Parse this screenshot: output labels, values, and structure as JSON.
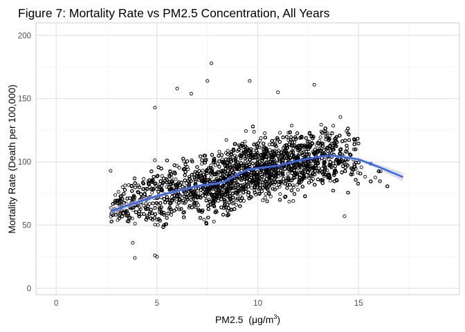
{
  "chart_data": {
    "type": "scatter",
    "title": "Figure 7: Mortality Rate vs PM2.5 Concentration, All Years",
    "xlabel_main": "PM2.5",
    "xlabel_unit": "(μg/m",
    "xlabel_sup": "3",
    "xlabel_close": ")",
    "ylabel": "Mortality Rate (Death per 100,000)",
    "xlim": [
      -1,
      20
    ],
    "ylim": [
      -5,
      210
    ],
    "x_ticks": [
      0,
      5,
      10,
      15
    ],
    "x_tick_labels": [
      "0",
      "5",
      "10",
      "15"
    ],
    "y_ticks": [
      0,
      50,
      100,
      150,
      200
    ],
    "y_tick_labels": [
      "0",
      "50",
      "100",
      "150",
      "200"
    ],
    "grid": true,
    "point_color": "#000000",
    "smooth_color": "#3366ff",
    "band_color": "#cccccc",
    "cloud": {
      "x_range": [
        2.7,
        17.3
      ],
      "y_spread": [
        20,
        120
      ]
    },
    "smooth": {
      "x": [
        2.7,
        4,
        5,
        6,
        7,
        8,
        8.3,
        9,
        9.5,
        10,
        11,
        12,
        13,
        13.5,
        14,
        15,
        16,
        17.2
      ],
      "y": [
        61,
        68,
        73,
        77,
        81,
        83,
        84,
        90,
        94,
        95,
        97,
        101,
        104,
        105,
        104.5,
        102,
        96,
        88
      ],
      "band": [
        3,
        2,
        1.5,
        1.2,
        1,
        1,
        1,
        1,
        0.8,
        0.8,
        0.8,
        0.8,
        0.8,
        0.8,
        0.9,
        1.2,
        2,
        3.5
      ]
    },
    "outliers": [
      {
        "x": 7.7,
        "y": 178
      },
      {
        "x": 7.5,
        "y": 164
      },
      {
        "x": 9.6,
        "y": 164
      },
      {
        "x": 6.0,
        "y": 158
      },
      {
        "x": 12.8,
        "y": 161
      },
      {
        "x": 11.0,
        "y": 155
      },
      {
        "x": 4.9,
        "y": 143
      },
      {
        "x": 6.7,
        "y": 154
      },
      {
        "x": 3.9,
        "y": 24
      },
      {
        "x": 4.9,
        "y": 26
      },
      {
        "x": 5.0,
        "y": 25
      },
      {
        "x": 3.8,
        "y": 36
      },
      {
        "x": 2.7,
        "y": 93
      },
      {
        "x": 3.3,
        "y": 80
      },
      {
        "x": 14.3,
        "y": 57
      }
    ]
  }
}
